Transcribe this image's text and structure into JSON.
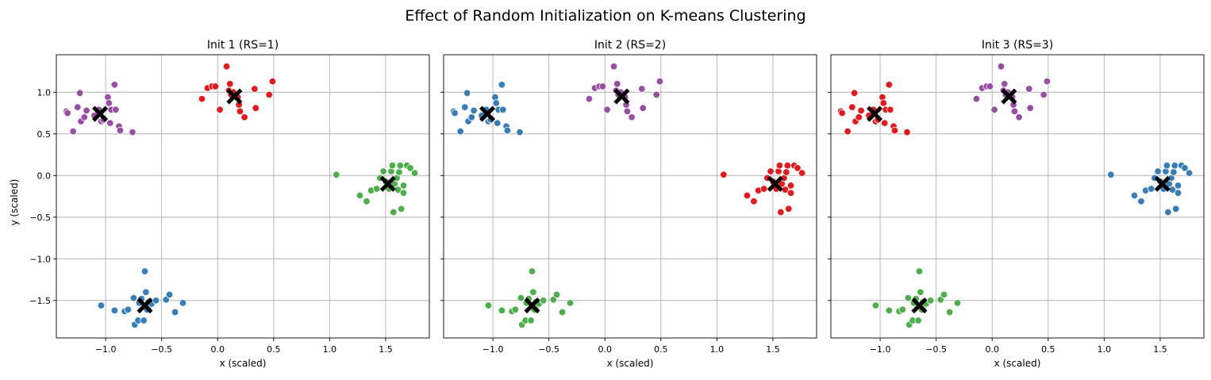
{
  "figure": {
    "suptitle": "Effect of Random Initialization on K-means Clustering",
    "xlabel": "x (scaled)",
    "ylabel": "y (scaled)"
  },
  "colors": {
    "red": "#e41a1c",
    "blue": "#377eb8",
    "green": "#4daf4a",
    "purple": "#984ea3",
    "centroid": "#000000",
    "grid": "#b0b0b0"
  },
  "chart_data": [
    {
      "type": "scatter",
      "title": "Init 1 (RS=1)",
      "xlabel": "x (scaled)",
      "ylabel": "y (scaled)",
      "xlim": [
        -1.44,
        1.89
      ],
      "ylim": [
        -1.95,
        1.45
      ],
      "xticks": [
        -1.0,
        -0.5,
        0.0,
        0.5,
        1.0,
        1.5
      ],
      "yticks": [
        -1.5,
        -1.0,
        -0.5,
        0.0,
        0.5,
        1.0
      ],
      "grid": true,
      "cluster_colors": [
        "purple",
        "red",
        "green",
        "blue"
      ]
    },
    {
      "type": "scatter",
      "title": "Init 2 (RS=2)",
      "xlabel": "x (scaled)",
      "ylabel": "",
      "xlim": [
        -1.44,
        1.89
      ],
      "ylim": [
        -1.95,
        1.45
      ],
      "xticks": [
        -1.0,
        -0.5,
        0.0,
        0.5,
        1.0,
        1.5
      ],
      "yticks": [
        -1.5,
        -1.0,
        -0.5,
        0.0,
        0.5,
        1.0
      ],
      "grid": true,
      "cluster_colors": [
        "blue",
        "purple",
        "red",
        "green"
      ]
    },
    {
      "type": "scatter",
      "title": "Init 3 (RS=3)",
      "xlabel": "x (scaled)",
      "ylabel": "",
      "xlim": [
        -1.44,
        1.89
      ],
      "ylim": [
        -1.95,
        1.45
      ],
      "xticks": [
        -1.0,
        -0.5,
        0.0,
        0.5,
        1.0,
        1.5
      ],
      "yticks": [
        -1.5,
        -1.0,
        -0.5,
        0.0,
        0.5,
        1.0
      ],
      "grid": true,
      "cluster_colors": [
        "red",
        "purple",
        "blue",
        "green"
      ]
    }
  ],
  "clusters": [
    {
      "id": "upper-left",
      "centroid": [
        -1.05,
        0.74
      ],
      "points": [
        [
          -1.35,
          0.77
        ],
        [
          -1.34,
          0.75
        ],
        [
          -1.29,
          0.53
        ],
        [
          -1.25,
          0.82
        ],
        [
          -1.23,
          0.99
        ],
        [
          -1.22,
          0.65
        ],
        [
          -1.19,
          0.7
        ],
        [
          -1.17,
          0.78
        ],
        [
          -1.1,
          0.72
        ],
        [
          -1.06,
          0.79
        ],
        [
          -1.04,
          0.65
        ],
        [
          -1.02,
          0.67
        ],
        [
          -0.98,
          0.94
        ],
        [
          -0.97,
          0.87
        ],
        [
          -0.96,
          0.63
        ],
        [
          -0.95,
          0.79
        ],
        [
          -0.92,
          1.09
        ],
        [
          -0.91,
          0.79
        ],
        [
          -0.88,
          0.59
        ],
        [
          -0.87,
          0.54
        ],
        [
          -0.76,
          0.52
        ]
      ]
    },
    {
      "id": "upper-middle",
      "centroid": [
        0.15,
        0.95
      ],
      "points": [
        [
          -0.14,
          0.92
        ],
        [
          -0.09,
          1.05
        ],
        [
          -0.05,
          1.07
        ],
        [
          -0.02,
          1.07
        ],
        [
          0.02,
          0.79
        ],
        [
          0.08,
          1.31
        ],
        [
          0.1,
          1.02
        ],
        [
          0.11,
          1.1
        ],
        [
          0.12,
          0.97
        ],
        [
          0.14,
          1.0
        ],
        [
          0.17,
          0.95
        ],
        [
          0.18,
          0.94
        ],
        [
          0.19,
          0.85
        ],
        [
          0.2,
          0.77
        ],
        [
          0.24,
          0.7
        ],
        [
          0.33,
          1.04
        ],
        [
          0.34,
          0.81
        ],
        [
          0.46,
          0.97
        ],
        [
          0.49,
          1.13
        ]
      ]
    },
    {
      "id": "right",
      "centroid": [
        1.52,
        -0.1
      ],
      "points": [
        [
          1.06,
          0.01
        ],
        [
          1.27,
          -0.24
        ],
        [
          1.33,
          -0.31
        ],
        [
          1.37,
          -0.18
        ],
        [
          1.42,
          -0.16
        ],
        [
          1.45,
          -0.03
        ],
        [
          1.48,
          0.05
        ],
        [
          1.5,
          -0.07
        ],
        [
          1.53,
          -0.16
        ],
        [
          1.55,
          0.05
        ],
        [
          1.56,
          0.12
        ],
        [
          1.57,
          -0.44
        ],
        [
          1.58,
          -0.1
        ],
        [
          1.6,
          -0.03
        ],
        [
          1.61,
          -0.17
        ],
        [
          1.62,
          0.04
        ],
        [
          1.63,
          0.12
        ],
        [
          1.64,
          -0.4
        ],
        [
          1.66,
          -0.12
        ],
        [
          1.66,
          -0.21
        ],
        [
          1.69,
          0.12
        ],
        [
          1.72,
          0.09
        ],
        [
          1.76,
          0.03
        ]
      ]
    },
    {
      "id": "lower",
      "centroid": [
        -0.65,
        -1.56
      ],
      "points": [
        [
          -1.04,
          -1.56
        ],
        [
          -0.92,
          -1.62
        ],
        [
          -0.83,
          -1.63
        ],
        [
          -0.8,
          -1.61
        ],
        [
          -0.75,
          -1.47
        ],
        [
          -0.74,
          -1.79
        ],
        [
          -0.71,
          -1.74
        ],
        [
          -0.7,
          -1.53
        ],
        [
          -0.68,
          -1.48
        ],
        [
          -0.66,
          -1.74
        ],
        [
          -0.65,
          -1.15
        ],
        [
          -0.64,
          -1.4
        ],
        [
          -0.63,
          -1.61
        ],
        [
          -0.62,
          -1.52
        ],
        [
          -0.61,
          -1.56
        ],
        [
          -0.59,
          -1.54
        ],
        [
          -0.55,
          -1.5
        ],
        [
          -0.46,
          -1.49
        ],
        [
          -0.43,
          -1.43
        ],
        [
          -0.38,
          -1.64
        ],
        [
          -0.31,
          -1.53
        ]
      ]
    }
  ]
}
